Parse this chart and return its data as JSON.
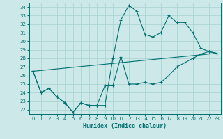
{
  "title": "",
  "xlabel": "Humidex (Indice chaleur)",
  "ylabel": "",
  "bg_color": "#cce8e8",
  "grid_color": "#a8d0d0",
  "line_color": "#007070",
  "xlim": [
    -0.5,
    23.5
  ],
  "ylim": [
    21.5,
    34.5
  ],
  "yticks": [
    22,
    23,
    24,
    25,
    26,
    27,
    28,
    29,
    30,
    31,
    32,
    33,
    34
  ],
  "xticks": [
    0,
    1,
    2,
    3,
    4,
    5,
    6,
    7,
    8,
    9,
    10,
    11,
    12,
    13,
    14,
    15,
    16,
    17,
    18,
    19,
    20,
    21,
    22,
    23
  ],
  "series1": {
    "x": [
      0,
      1,
      2,
      3,
      4,
      5,
      6,
      7,
      8,
      9,
      10,
      11,
      12,
      13,
      14,
      15,
      16,
      17,
      18,
      19,
      20,
      21,
      22,
      23
    ],
    "y": [
      26.5,
      24.0,
      24.5,
      23.5,
      22.8,
      21.7,
      22.8,
      22.5,
      22.5,
      22.5,
      28.0,
      32.5,
      34.2,
      33.5,
      30.8,
      30.5,
      31.0,
      33.0,
      32.2,
      32.2,
      31.0,
      29.2,
      28.8,
      28.6
    ]
  },
  "series2": {
    "x": [
      0,
      1,
      2,
      3,
      4,
      5,
      6,
      7,
      8,
      9,
      10,
      11,
      12,
      13,
      14,
      15,
      16,
      17,
      18,
      19,
      20,
      21,
      22,
      23
    ],
    "y": [
      26.5,
      24.0,
      24.5,
      23.5,
      22.8,
      21.7,
      22.8,
      22.5,
      22.5,
      24.8,
      24.8,
      28.2,
      25.0,
      25.0,
      25.2,
      25.0,
      25.2,
      26.0,
      27.0,
      27.5,
      28.0,
      28.5,
      28.8,
      28.6
    ]
  },
  "series3": {
    "x": [
      0,
      23
    ],
    "y": [
      26.5,
      28.6
    ]
  }
}
